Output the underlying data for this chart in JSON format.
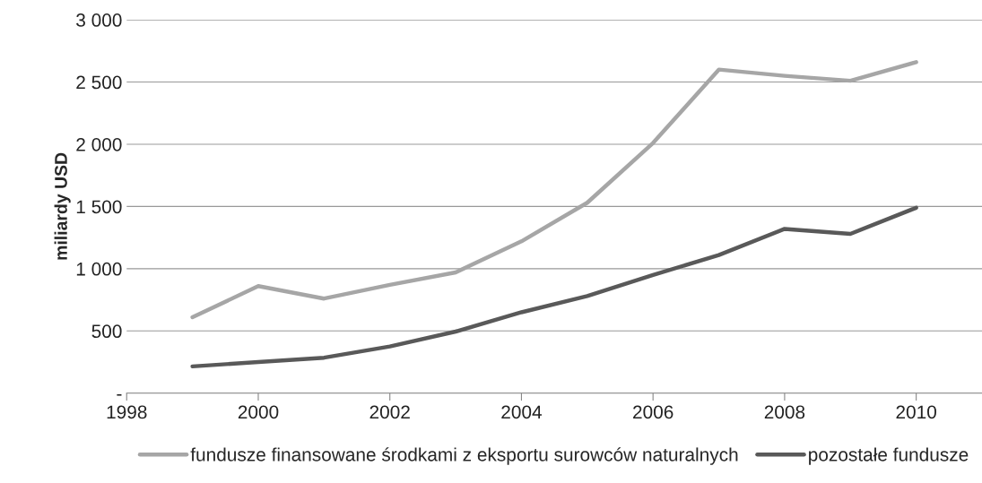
{
  "chart_data": {
    "type": "line",
    "ylabel": "miliardy USD",
    "x": [
      1999,
      2000,
      2001,
      2002,
      2003,
      2004,
      2005,
      2006,
      2007,
      2008,
      2009,
      2010
    ],
    "series": [
      {
        "name": "fundusze finansowane środkami z eksportu surowców naturalnych",
        "color": "#a6a6a6",
        "values": [
          610,
          860,
          760,
          870,
          970,
          1220,
          1530,
          2010,
          2600,
          2550,
          2510,
          2660
        ]
      },
      {
        "name": "pozostałe fundusze",
        "color": "#595959",
        "values": [
          215,
          250,
          285,
          375,
          495,
          650,
          780,
          950,
          1110,
          1320,
          1280,
          1490
        ]
      }
    ],
    "xlim": [
      1998,
      2011
    ],
    "xticks": [
      1998,
      2000,
      2002,
      2004,
      2006,
      2008,
      2010
    ],
    "ylim": [
      0,
      3000
    ],
    "yticks": [
      {
        "value": 0,
        "label": "-"
      },
      500,
      {
        "value": 1000,
        "label": "1 000"
      },
      {
        "value": 1500,
        "label": "1 500"
      },
      {
        "value": 2000,
        "label": "2 000"
      },
      {
        "value": 2500,
        "label": "2 500"
      },
      {
        "value": 3000,
        "label": "3 000"
      }
    ],
    "grid": "y",
    "legend": "bottom",
    "marker": "none",
    "line_style": "solid"
  }
}
